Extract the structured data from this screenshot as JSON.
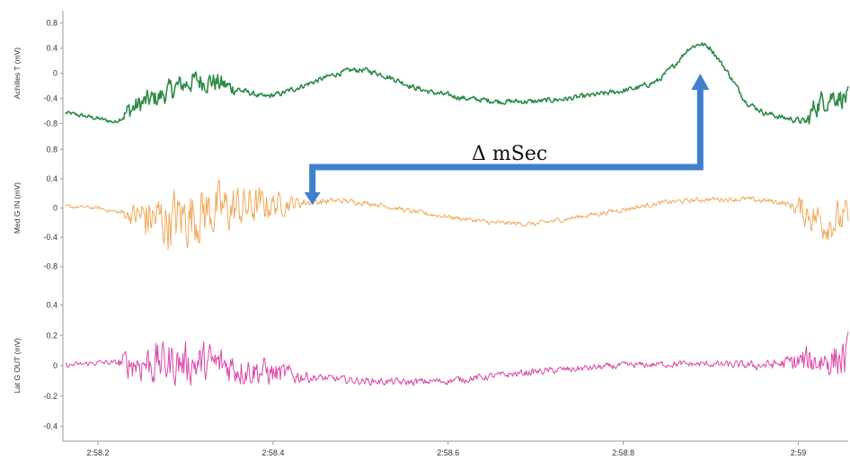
{
  "chart_data": {
    "type": "line",
    "x_ticks": [
      "2:58.2",
      "2:58.4",
      "2:58.6",
      "2:58.8",
      "2:59"
    ],
    "x_tick_values": [
      0.2,
      0.4,
      0.6,
      0.8,
      1.0
    ],
    "xlim": [
      0.16,
      1.057
    ],
    "grid": false,
    "legend": "none",
    "annotation": {
      "text": "Δ mSec",
      "from_x": 0.888,
      "to_x": 0.445,
      "color": "#3f7fce"
    },
    "panels": [
      {
        "ylabel": "Achilles T (mV)",
        "ylim": [
          -0.95,
          0.95
        ],
        "yticks": [
          0.8,
          0.4,
          0,
          -0.4,
          -0.8
        ],
        "ytick_labels": [
          "0.8",
          "0.4",
          "0",
          "-0.4",
          "-0.8"
        ],
        "series": [
          {
            "color": "#2e8b47",
            "stroke_width": 1.6,
            "trend": [
              [
                0.163,
                -0.63
              ],
              [
                0.18,
                -0.67
              ],
              [
                0.2,
                -0.72
              ],
              [
                0.22,
                -0.78
              ],
              [
                0.235,
                -0.6
              ],
              [
                0.25,
                -0.48
              ],
              [
                0.27,
                -0.38
              ],
              [
                0.29,
                -0.22
              ],
              [
                0.31,
                -0.12
              ],
              [
                0.33,
                -0.12
              ],
              [
                0.35,
                -0.22
              ],
              [
                0.37,
                -0.3
              ],
              [
                0.39,
                -0.38
              ],
              [
                0.41,
                -0.32
              ],
              [
                0.43,
                -0.22
              ],
              [
                0.45,
                -0.12
              ],
              [
                0.47,
                -0.02
              ],
              [
                0.49,
                0.05
              ],
              [
                0.505,
                0.05
              ],
              [
                0.52,
                0.0
              ],
              [
                0.54,
                -0.1
              ],
              [
                0.56,
                -0.22
              ],
              [
                0.58,
                -0.3
              ],
              [
                0.6,
                -0.35
              ],
              [
                0.62,
                -0.4
              ],
              [
                0.66,
                -0.45
              ],
              [
                0.7,
                -0.45
              ],
              [
                0.74,
                -0.4
              ],
              [
                0.78,
                -0.32
              ],
              [
                0.8,
                -0.28
              ],
              [
                0.82,
                -0.22
              ],
              [
                0.84,
                -0.12
              ],
              [
                0.86,
                0.15
              ],
              [
                0.875,
                0.4
              ],
              [
                0.888,
                0.47
              ],
              [
                0.9,
                0.4
              ],
              [
                0.92,
                0.0
              ],
              [
                0.94,
                -0.45
              ],
              [
                0.96,
                -0.62
              ],
              [
                0.98,
                -0.7
              ],
              [
                1.0,
                -0.75
              ],
              [
                1.01,
                -0.78
              ],
              [
                1.02,
                -0.5
              ],
              [
                1.04,
                -0.35
              ],
              [
                1.057,
                -0.4
              ]
            ],
            "noise": [
              [
                0.163,
                0.04
              ],
              [
                0.225,
                0.04
              ],
              [
                0.235,
                0.2
              ],
              [
                0.34,
                0.2
              ],
              [
                0.37,
                0.05
              ],
              [
                0.97,
                0.05
              ],
              [
                1.005,
                0.06
              ],
              [
                1.015,
                0.22
              ],
              [
                1.057,
                0.2
              ]
            ]
          }
        ]
      },
      {
        "ylabel": "Med G IN (mV)",
        "ylim": [
          -1.0,
          1.0
        ],
        "yticks": [
          0.8,
          0.4,
          0,
          -0.4,
          -0.8
        ],
        "ytick_labels": [
          "0.8",
          "0.4",
          "0",
          "-0.4",
          "-0.8"
        ],
        "series": [
          {
            "color": "#f0a95a",
            "stroke_width": 1.0,
            "trend": [
              [
                0.163,
                0.02
              ],
              [
                0.2,
                0.0
              ],
              [
                0.24,
                -0.1
              ],
              [
                0.28,
                -0.18
              ],
              [
                0.32,
                -0.05
              ],
              [
                0.36,
                -0.0
              ],
              [
                0.4,
                0.05
              ],
              [
                0.44,
                0.08
              ],
              [
                0.48,
                0.1
              ],
              [
                0.52,
                0.05
              ],
              [
                0.56,
                -0.05
              ],
              [
                0.6,
                -0.12
              ],
              [
                0.65,
                -0.2
              ],
              [
                0.7,
                -0.22
              ],
              [
                0.75,
                -0.12
              ],
              [
                0.8,
                -0.02
              ],
              [
                0.85,
                0.08
              ],
              [
                0.9,
                0.12
              ],
              [
                0.94,
                0.12
              ],
              [
                0.98,
                0.08
              ],
              [
                1.0,
                0.0
              ],
              [
                1.03,
                -0.2
              ],
              [
                1.057,
                -0.15
              ]
            ],
            "noise": [
              [
                0.163,
                0.03
              ],
              [
                0.22,
                0.03
              ],
              [
                0.235,
                0.12
              ],
              [
                0.255,
                0.4
              ],
              [
                0.3,
                0.5
              ],
              [
                0.37,
                0.35
              ],
              [
                0.41,
                0.18
              ],
              [
                0.44,
                0.06
              ],
              [
                0.5,
                0.04
              ],
              [
                0.9,
                0.04
              ],
              [
                0.99,
                0.05
              ],
              [
                1.005,
                0.25
              ],
              [
                1.057,
                0.3
              ]
            ]
          }
        ]
      },
      {
        "ylabel": "Lat G OUT (mV)",
        "ylim": [
          -0.48,
          0.48
        ],
        "yticks": [
          0.4,
          0.2,
          0,
          -0.2,
          -0.4
        ],
        "ytick_labels": [
          "0.4",
          "0.2",
          "0",
          "-0.2",
          "-0.4"
        ],
        "series": [
          {
            "color": "#d94aa8",
            "stroke_width": 1.0,
            "trend": [
              [
                0.163,
                0.0
              ],
              [
                0.2,
                0.02
              ],
              [
                0.25,
                0.02
              ],
              [
                0.3,
                0.02
              ],
              [
                0.35,
                0.0
              ],
              [
                0.4,
                -0.05
              ],
              [
                0.45,
                -0.08
              ],
              [
                0.5,
                -0.1
              ],
              [
                0.55,
                -0.11
              ],
              [
                0.6,
                -0.1
              ],
              [
                0.65,
                -0.07
              ],
              [
                0.7,
                -0.04
              ],
              [
                0.75,
                -0.02
              ],
              [
                0.8,
                0.0
              ],
              [
                0.85,
                0.01
              ],
              [
                0.9,
                0.01
              ],
              [
                0.95,
                0.0
              ],
              [
                1.0,
                0.02
              ],
              [
                1.057,
                0.05
              ]
            ],
            "noise": [
              [
                0.163,
                0.02
              ],
              [
                0.22,
                0.02
              ],
              [
                0.235,
                0.12
              ],
              [
                0.26,
                0.17
              ],
              [
                0.32,
                0.16
              ],
              [
                0.4,
                0.1
              ],
              [
                0.45,
                0.03
              ],
              [
                0.9,
                0.025
              ],
              [
                0.98,
                0.04
              ],
              [
                1.0,
                0.1
              ],
              [
                1.057,
                0.16
              ]
            ]
          }
        ]
      }
    ]
  }
}
